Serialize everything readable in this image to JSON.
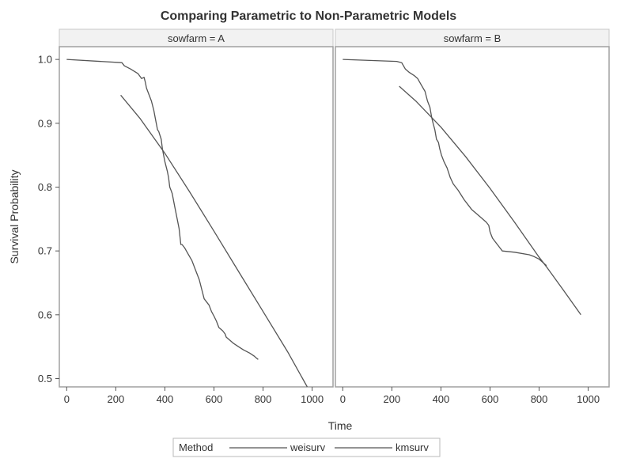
{
  "chart_data": {
    "type": "line",
    "title": "Comparing Parametric to Non-Parametric Models",
    "xlabel": "Time",
    "ylabel": "Survival Probability",
    "xlim": [
      -30,
      1085
    ],
    "ylim": [
      0.487,
      1.02
    ],
    "xticks": [
      "0",
      "200",
      "400",
      "600",
      "800",
      "1000"
    ],
    "xtick_values": [
      0,
      200,
      400,
      600,
      800,
      1000
    ],
    "yticks": [
      "0.5",
      "0.6",
      "0.7",
      "0.8",
      "0.9",
      "1.0"
    ],
    "ytick_values": [
      0.5,
      0.6,
      0.7,
      0.8,
      0.9,
      1.0
    ],
    "grid": false,
    "legend": {
      "title": "Method",
      "placement": "bottom",
      "entries": [
        "weisurv",
        "kmsurv"
      ]
    },
    "line_color": "#555555",
    "panels": [
      {
        "label": "sowfarm = A",
        "series": [
          {
            "name": "weisurv",
            "x": [
              220,
              300,
              400,
              500,
              600,
              700,
              800,
              900,
              980
            ],
            "y": [
              0.944,
              0.907,
              0.853,
              0.793,
              0.731,
              0.668,
              0.605,
              0.542,
              0.487
            ]
          },
          {
            "name": "kmsurv",
            "x": [
              0,
              225,
              235,
              260,
              290,
              305,
              315,
              320,
              325,
              335,
              345,
              355,
              360,
              370,
              375,
              385,
              390,
              400,
              410,
              415,
              420,
              425,
              430,
              440,
              450,
              458,
              465,
              470,
              480,
              495,
              510,
              525,
              540,
              550,
              560,
              570,
              580,
              590,
              600,
              610,
              620,
              635,
              645,
              650,
              665,
              680,
              700,
              720,
              745,
              765,
              770,
              780
            ],
            "y": [
              1.0,
              0.995,
              0.99,
              0.985,
              0.978,
              0.97,
              0.972,
              0.965,
              0.955,
              0.945,
              0.935,
              0.92,
              0.91,
              0.89,
              0.887,
              0.875,
              0.86,
              0.84,
              0.825,
              0.815,
              0.8,
              0.795,
              0.79,
              0.77,
              0.75,
              0.735,
              0.71,
              0.71,
              0.705,
              0.695,
              0.685,
              0.67,
              0.655,
              0.64,
              0.625,
              0.62,
              0.615,
              0.605,
              0.598,
              0.59,
              0.58,
              0.575,
              0.57,
              0.565,
              0.56,
              0.555,
              0.55,
              0.545,
              0.54,
              0.535,
              0.533,
              0.53
            ]
          }
        ]
      },
      {
        "label": "sowfarm = B",
        "series": [
          {
            "name": "weisurv",
            "x": [
              230,
              300,
              400,
              500,
              600,
              700,
              800,
              830,
              900,
              970
            ],
            "y": [
              0.958,
              0.934,
              0.894,
              0.848,
              0.798,
              0.745,
              0.69,
              0.675,
              0.638,
              0.6
            ]
          },
          {
            "name": "kmsurv",
            "x": [
              0,
              220,
              240,
              255,
              270,
              290,
              305,
              320,
              335,
              345,
              355,
              362,
              368,
              375,
              382,
              390,
              395,
              402,
              412,
              425,
              438,
              450,
              470,
              495,
              525,
              555,
              585,
              595,
              600,
              605,
              610,
              620,
              630,
              640,
              650,
              700,
              760,
              780,
              800,
              830
            ],
            "y": [
              1.0,
              0.997,
              0.995,
              0.985,
              0.98,
              0.975,
              0.97,
              0.96,
              0.95,
              0.935,
              0.925,
              0.91,
              0.9,
              0.89,
              0.875,
              0.87,
              0.86,
              0.85,
              0.84,
              0.83,
              0.815,
              0.805,
              0.795,
              0.78,
              0.765,
              0.755,
              0.745,
              0.74,
              0.73,
              0.725,
              0.72,
              0.715,
              0.71,
              0.705,
              0.7,
              0.698,
              0.694,
              0.691,
              0.687,
              0.677
            ]
          }
        ]
      }
    ]
  }
}
